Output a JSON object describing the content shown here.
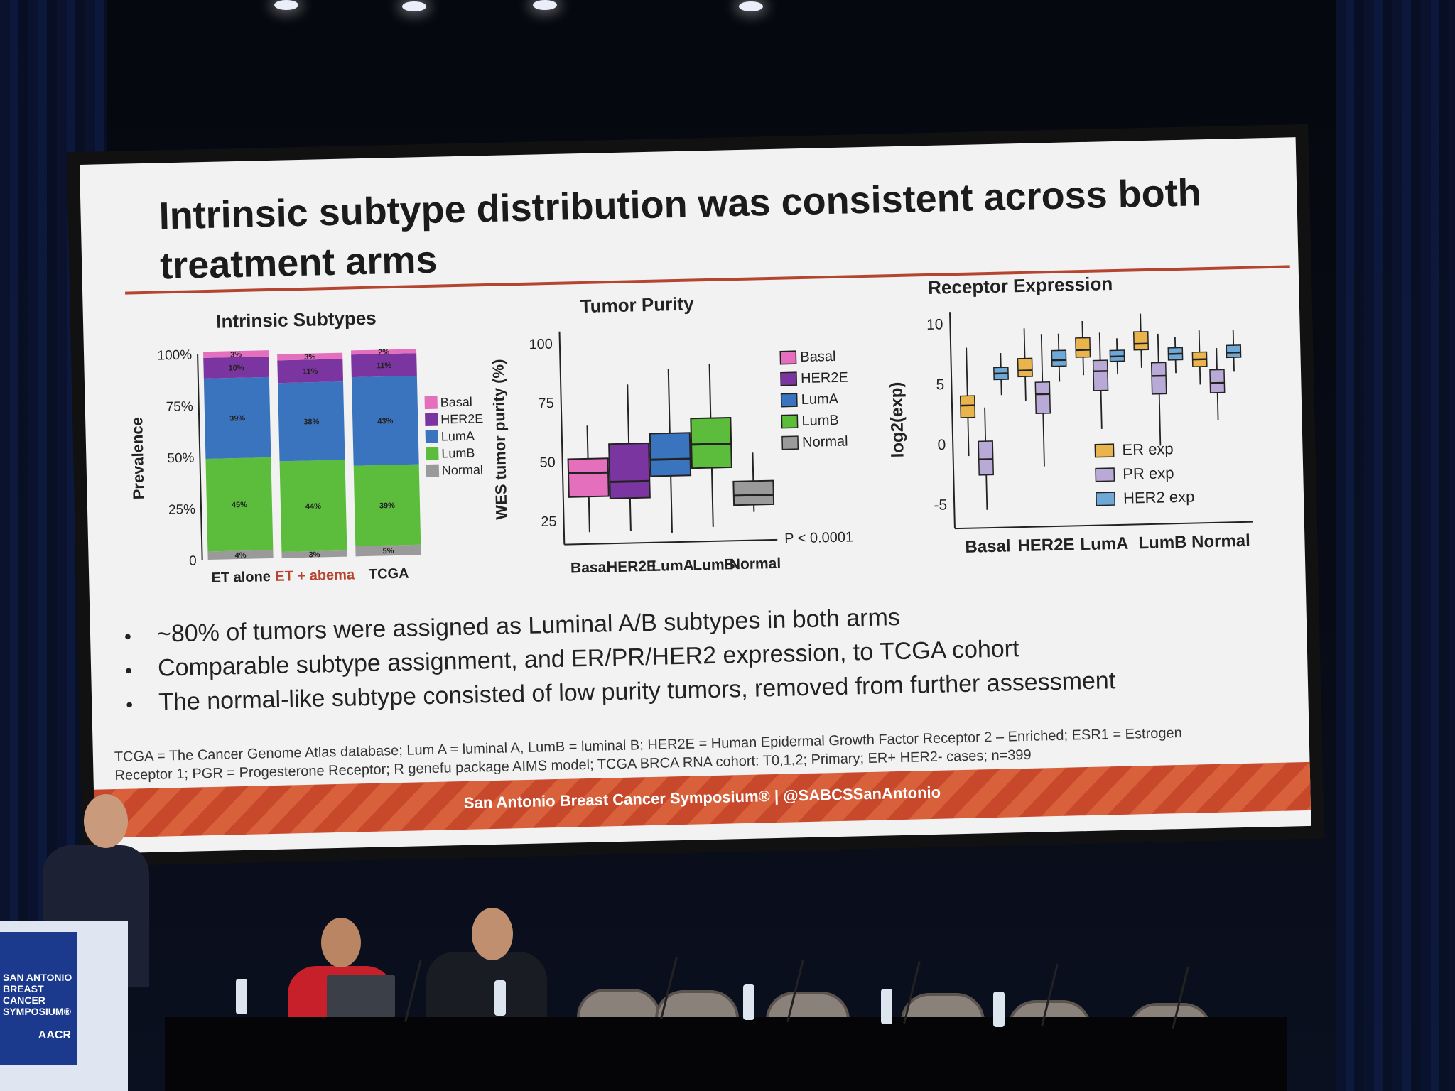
{
  "slide": {
    "title": "Intrinsic subtype distribution was consistent across both treatment arms",
    "banner": "San Antonio Breast Cancer Symposium®  |  @SABCSSanAntonio",
    "bullets": [
      "~80% of tumors were assigned as Luminal A/B subtypes in both arms",
      "Comparable subtype assignment, and ER/PR/HER2 expression, to TCGA cohort",
      "The normal-like subtype consisted of low purity tumors, removed from further assessment"
    ],
    "footnote_line1": "TCGA = The Cancer Genome Atlas database; Lum A = luminal A, LumB = luminal B; HER2E = Human Epidermal Growth Factor Receptor 2 – Enriched; ESR1 = Estrogen",
    "footnote_line2": "Receptor 1; PGR = Progesterone Receptor; R genefu package AIMS model; TCGA BRCA RNA cohort: T0,1,2; Primary; ER+ HER2- cases; n=399"
  },
  "podium": {
    "logo_lines": [
      "SAN ANTONIO",
      "BREAST CANCER",
      "SYMPOSIUM®"
    ],
    "sponsor": "AACR"
  },
  "colors": {
    "Basal": "#e36fbd",
    "HER2E": "#7b35a0",
    "LumA": "#3a73be",
    "LumB": "#5cbd3c",
    "Normal": "#9a9a9a",
    "ER": "#e9b44c",
    "PR": "#b9a9d6",
    "HER2": "#6ea8d6",
    "accent": "#b5452e"
  },
  "chart_data": [
    {
      "type": "bar",
      "stacked": true,
      "title": "Intrinsic Subtypes",
      "ylabel": "Prevalence",
      "yticks": [
        "0",
        "25%",
        "50%",
        "75%",
        "100%"
      ],
      "categories": [
        "ET alone",
        "ET + abema",
        "TCGA"
      ],
      "category_colors": [
        "#222222",
        "#b5452e",
        "#222222"
      ],
      "series": [
        {
          "name": "Normal",
          "values": [
            4,
            3,
            5
          ],
          "labels": [
            "4%",
            "3%",
            "5%"
          ]
        },
        {
          "name": "LumB",
          "values": [
            45,
            44,
            39
          ],
          "labels": [
            "45%",
            "44%",
            "39%"
          ]
        },
        {
          "name": "LumA",
          "values": [
            39,
            38,
            43
          ],
          "labels": [
            "39%",
            "38%",
            "43%"
          ]
        },
        {
          "name": "HER2E",
          "values": [
            10,
            11,
            11
          ],
          "labels": [
            "10%",
            "11%",
            "11%"
          ]
        },
        {
          "name": "Basal",
          "values": [
            3,
            3,
            2
          ],
          "labels": [
            "3%",
            "3%",
            "2%"
          ]
        }
      ],
      "legend": [
        "Basal",
        "HER2E",
        "LumA",
        "LumB",
        "Normal"
      ]
    },
    {
      "type": "box",
      "title": "Tumor Purity",
      "ylabel": "WES tumor purity (%)",
      "ylim": [
        15,
        105
      ],
      "yticks": [
        25,
        50,
        75,
        100
      ],
      "categories": [
        "Basal",
        "HER2E",
        "LumA",
        "LumB",
        "Normal"
      ],
      "boxes": [
        {
          "min": 20,
          "q1": 35,
          "median": 45,
          "q3": 51,
          "max": 65
        },
        {
          "min": 20,
          "q1": 34,
          "median": 41,
          "q3": 57,
          "max": 82
        },
        {
          "min": 19,
          "q1": 43,
          "median": 50,
          "q3": 61,
          "max": 88
        },
        {
          "min": 21,
          "q1": 46,
          "median": 56,
          "q3": 67,
          "max": 90
        },
        {
          "min": 27,
          "q1": 30,
          "median": 34,
          "q3": 40,
          "max": 52
        }
      ],
      "annotation": "P < 0.0001",
      "legend": [
        "Basal",
        "HER2E",
        "LumA",
        "LumB",
        "Normal"
      ]
    },
    {
      "type": "box",
      "title": "Receptor Expression",
      "ylabel": "log2(exp)",
      "ylim": [
        -7,
        11
      ],
      "yticks": [
        -5,
        0,
        5,
        10
      ],
      "categories": [
        "Basal",
        "HER2E",
        "LumA",
        "LumB",
        "Normal"
      ],
      "series": [
        {
          "name": "ER exp",
          "boxes": [
            {
              "min": -1,
              "q1": 2.2,
              "median": 3.2,
              "q3": 4,
              "max": 8
            },
            {
              "min": 3.5,
              "q1": 5.5,
              "median": 6,
              "q3": 7,
              "max": 9.5
            },
            {
              "min": 5.5,
              "q1": 7,
              "median": 7.6,
              "q3": 8.6,
              "max": 10
            },
            {
              "min": 6,
              "q1": 7.5,
              "median": 8,
              "q3": 9,
              "max": 10.5
            },
            {
              "min": 4.5,
              "q1": 6,
              "median": 6.6,
              "q3": 7.2,
              "max": 9
            }
          ]
        },
        {
          "name": "PR exp",
          "boxes": [
            {
              "min": -5.5,
              "q1": -2.6,
              "median": -1.3,
              "q3": 0.2,
              "max": 3
            },
            {
              "min": -2,
              "q1": 2.4,
              "median": 4,
              "q3": 5,
              "max": 9
            },
            {
              "min": 1,
              "q1": 4.2,
              "median": 5.8,
              "q3": 6.7,
              "max": 9
            },
            {
              "min": -0.5,
              "q1": 3.8,
              "median": 5.3,
              "q3": 6.4,
              "max": 8.8
            },
            {
              "min": 1.5,
              "q1": 3.8,
              "median": 4.6,
              "q3": 5.7,
              "max": 7.5
            }
          ]
        },
        {
          "name": "HER2 exp",
          "boxes": [
            {
              "min": 4,
              "q1": 5.3,
              "median": 5.8,
              "q3": 6.3,
              "max": 7.5
            },
            {
              "min": 5,
              "q1": 6.3,
              "median": 6.8,
              "q3": 7.6,
              "max": 9
            },
            {
              "min": 5.5,
              "q1": 6.6,
              "median": 7,
              "q3": 7.5,
              "max": 8.5
            },
            {
              "min": 5.5,
              "q1": 6.6,
              "median": 7.1,
              "q3": 7.6,
              "max": 8.5
            },
            {
              "min": 5.5,
              "q1": 6.7,
              "median": 7.1,
              "q3": 7.7,
              "max": 9
            }
          ]
        }
      ],
      "legend": [
        "ER exp",
        "PR exp",
        "HER2 exp"
      ]
    }
  ]
}
